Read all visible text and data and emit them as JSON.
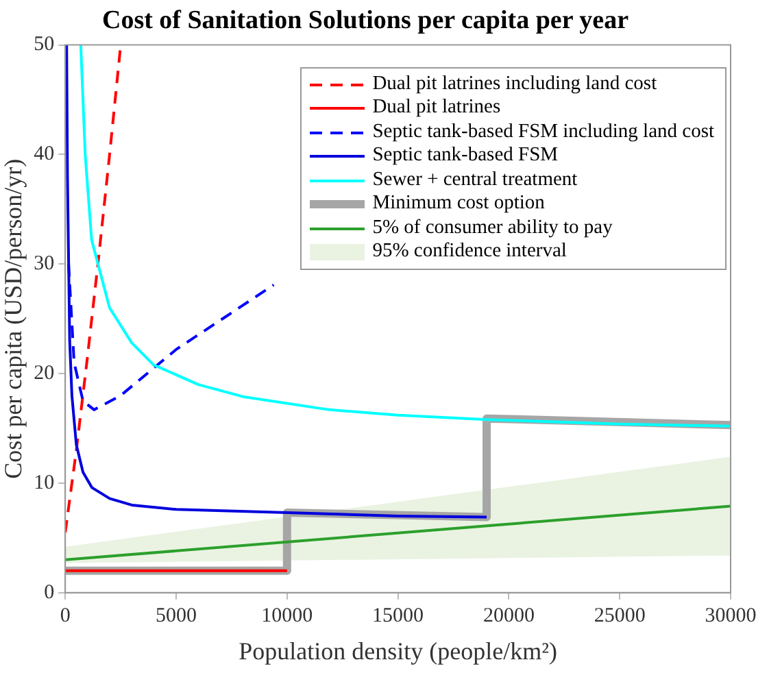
{
  "chart_data": {
    "type": "line",
    "title": "Cost of Sanitation Solutions per capita per year",
    "xlabel": "Population density (people/km²)",
    "ylabel": "Cost per capita (USD/person/yr)",
    "xlim": [
      0,
      30000
    ],
    "ylim": [
      0,
      50
    ],
    "xticks": [
      0,
      5000,
      10000,
      15000,
      20000,
      25000,
      30000
    ],
    "yticks": [
      0,
      10,
      20,
      30,
      40,
      50
    ],
    "grid": false,
    "legend": "top right",
    "series": [
      {
        "name": "Dual pit latrines including land cost",
        "color": "#ff0000",
        "line_style": "dashed",
        "x": [
          0,
          500,
          1000,
          1500,
          2000,
          2500
        ],
        "values": [
          5.5,
          13,
          21.5,
          30.5,
          40,
          50
        ]
      },
      {
        "name": "Dual pit latrines",
        "color": "#ff0000",
        "line_style": "solid",
        "x": [
          0,
          10000
        ],
        "values": [
          2,
          2
        ]
      },
      {
        "name": "Septic tank-based FSM including land cost",
        "color": "#0000ff",
        "line_style": "dashed",
        "x": [
          150,
          400,
          800,
          1300,
          2500,
          5000,
          9400
        ],
        "values": [
          30,
          21,
          17.5,
          16.7,
          18,
          22.2,
          28.1
        ]
      },
      {
        "name": "Septic tank-based FSM",
        "color": "#0000dd",
        "line_style": "solid",
        "x": [
          62,
          100,
          200,
          300,
          500,
          800,
          1200,
          2000,
          3000,
          5000,
          10000,
          15000,
          19000
        ],
        "values": [
          50,
          38,
          23,
          18,
          13.5,
          11,
          9.6,
          8.6,
          8,
          7.6,
          7.3,
          7,
          6.9
        ]
      },
      {
        "name": "Sewer + central treatment",
        "color": "#00ffff",
        "line_style": "solid",
        "x": [
          700,
          900,
          1190,
          2000,
          3000,
          3980,
          6000,
          8000,
          11900,
          15000,
          19000,
          25000,
          30000
        ],
        "values": [
          50,
          40,
          32.2,
          26,
          22.8,
          20.8,
          19,
          17.9,
          16.7,
          16.2,
          15.8,
          15.4,
          15.2
        ]
      },
      {
        "name": "Minimum cost option",
        "color": "#a6a6a6",
        "line_style": "solid",
        "x": [
          0,
          10000,
          10000,
          19000,
          19000,
          30000
        ],
        "values": [
          2,
          2,
          7.3,
          6.9,
          15.9,
          15.3
        ]
      },
      {
        "name": "5% of consumer ability to pay",
        "color": "#2ca02c",
        "line_style": "solid",
        "x": [
          0,
          30000
        ],
        "values": [
          3,
          7.9
        ],
        "lower": [
          2.7,
          3.4
        ],
        "upper": [
          4.2,
          12.4
        ]
      },
      {
        "name": "95% confidence interval",
        "type": "area",
        "color": "#eaf3e2"
      }
    ]
  }
}
